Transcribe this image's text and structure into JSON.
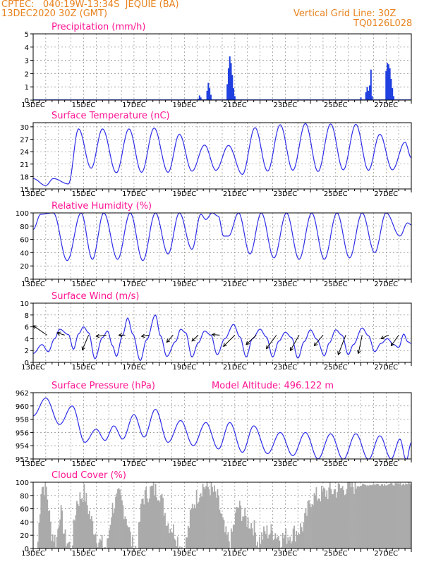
{
  "header": {
    "line1": "CPTEC:   040:19W-13:34S  JEQUIE (BA)",
    "line2": "13DEC2020 30Z (GMT)",
    "right1": "Vertical Grid Line: 30Z",
    "right2": "TQ0126L028"
  },
  "colors": {
    "line": "#2e2ee8",
    "bar": "#1f3fe0",
    "title": "#ff1493",
    "cloud": "#aaaaaa",
    "header": "#e8821e"
  },
  "x_tick_labels": [
    "13DEC",
    "15DEC",
    "17DEC",
    "19DEC",
    "21DEC",
    "23DEC",
    "25DEC",
    "27DEC"
  ],
  "chart_data": [
    {
      "type": "bar",
      "title": "Precipitation (mm/h)",
      "ylim": [
        0,
        5
      ],
      "y_ticks": [
        0,
        1,
        2,
        3,
        4,
        5
      ],
      "x_unit": "day offset from 13DEC 00Z",
      "bars": [
        [
          6.55,
          0.1
        ],
        [
          6.6,
          0.35
        ],
        [
          6.65,
          0.2
        ],
        [
          6.9,
          0.7
        ],
        [
          6.95,
          1.3
        ],
        [
          7.0,
          0.9
        ],
        [
          7.05,
          0.4
        ],
        [
          7.7,
          1.2
        ],
        [
          7.75,
          2.4
        ],
        [
          7.8,
          3.3
        ],
        [
          7.85,
          2.8
        ],
        [
          7.9,
          1.9
        ],
        [
          7.95,
          0.9
        ],
        [
          8.0,
          0.3
        ],
        [
          9.9,
          0.05
        ],
        [
          11.1,
          0.05
        ],
        [
          12.95,
          0.05
        ],
        [
          13.0,
          0.2
        ],
        [
          13.2,
          0.6
        ],
        [
          13.25,
          1.0
        ],
        [
          13.3,
          0.7
        ],
        [
          13.35,
          1.1
        ],
        [
          13.4,
          2.3
        ],
        [
          13.45,
          0.3
        ],
        [
          14.0,
          2.2
        ],
        [
          14.05,
          2.8
        ],
        [
          14.1,
          2.7
        ],
        [
          14.15,
          2.4
        ],
        [
          14.2,
          1.6
        ],
        [
          14.25,
          0.9
        ],
        [
          14.3,
          0.3
        ]
      ]
    },
    {
      "type": "line",
      "title": "Surface Temperature (nC)",
      "ylim": [
        15,
        31
      ],
      "y_ticks": [
        15,
        18,
        21,
        24,
        27,
        30
      ],
      "extrema": [
        [
          0.0,
          17.5
        ],
        [
          0.5,
          15.8
        ],
        [
          0.8,
          17.5
        ],
        [
          1.4,
          16.2
        ],
        [
          1.8,
          29.5
        ],
        [
          2.3,
          20.0
        ],
        [
          2.75,
          29.5
        ],
        [
          3.3,
          18.9
        ],
        [
          3.8,
          29.5
        ],
        [
          4.3,
          19.0
        ],
        [
          4.8,
          29.7
        ],
        [
          5.35,
          19.0
        ],
        [
          5.8,
          28.2
        ],
        [
          6.3,
          19.3
        ],
        [
          6.8,
          25.6
        ],
        [
          7.25,
          19.5
        ],
        [
          7.75,
          25.5
        ],
        [
          8.3,
          18.5
        ],
        [
          8.8,
          29.8
        ],
        [
          9.3,
          19.3
        ],
        [
          9.8,
          30.5
        ],
        [
          10.3,
          19.5
        ],
        [
          10.8,
          30.8
        ],
        [
          11.3,
          19.2
        ],
        [
          11.8,
          30.7
        ],
        [
          12.3,
          19.6
        ],
        [
          12.8,
          30.6
        ],
        [
          13.3,
          19.5
        ],
        [
          13.75,
          28.2
        ],
        [
          14.25,
          19.6
        ],
        [
          14.75,
          26.3
        ],
        [
          15.0,
          22.5
        ]
      ]
    },
    {
      "type": "line",
      "title": "Relative Humidity (%)",
      "ylim": [
        0,
        100
      ],
      "y_ticks": [
        0,
        20,
        40,
        60,
        80,
        100
      ],
      "extrema": [
        [
          0.0,
          75
        ],
        [
          0.3,
          98
        ],
        [
          0.8,
          100
        ],
        [
          1.35,
          28
        ],
        [
          1.9,
          100
        ],
        [
          2.35,
          30
        ],
        [
          2.8,
          100
        ],
        [
          3.35,
          30
        ],
        [
          3.85,
          100
        ],
        [
          4.35,
          28
        ],
        [
          4.85,
          100
        ],
        [
          5.35,
          38
        ],
        [
          5.8,
          100
        ],
        [
          6.3,
          45
        ],
        [
          6.65,
          98
        ],
        [
          6.85,
          90
        ],
        [
          7.1,
          100
        ],
        [
          7.35,
          95
        ],
        [
          7.55,
          65
        ],
        [
          7.75,
          65
        ],
        [
          8.15,
          100
        ],
        [
          8.6,
          38
        ],
        [
          9.05,
          100
        ],
        [
          9.55,
          32
        ],
        [
          10.05,
          100
        ],
        [
          10.55,
          30
        ],
        [
          11.05,
          100
        ],
        [
          11.55,
          30
        ],
        [
          12.05,
          100
        ],
        [
          12.55,
          32
        ],
        [
          13.05,
          100
        ],
        [
          13.55,
          40
        ],
        [
          14.0,
          100
        ],
        [
          14.55,
          65
        ],
        [
          14.85,
          85
        ],
        [
          15.0,
          82
        ]
      ]
    },
    {
      "type": "line",
      "title": "Surface Wind (m/s)",
      "ylim": [
        0,
        10
      ],
      "y_ticks": [
        0,
        2,
        4,
        6,
        8,
        10
      ],
      "extrema": [
        [
          0.0,
          1.5
        ],
        [
          0.35,
          3.0
        ],
        [
          0.6,
          1.8
        ],
        [
          0.85,
          4.0
        ],
        [
          1.05,
          5.6
        ],
        [
          1.4,
          4.7
        ],
        [
          1.6,
          2.2
        ],
        [
          1.8,
          4.8
        ],
        [
          2.0,
          6.0
        ],
        [
          2.2,
          5.0
        ],
        [
          2.45,
          0.6
        ],
        [
          2.75,
          4.2
        ],
        [
          2.95,
          5.3
        ],
        [
          3.15,
          2.8
        ],
        [
          3.3,
          1.0
        ],
        [
          3.55,
          4.6
        ],
        [
          3.75,
          7.5
        ],
        [
          3.95,
          4.8
        ],
        [
          4.25,
          0.3
        ],
        [
          4.5,
          3.8
        ],
        [
          4.85,
          8.0
        ],
        [
          5.05,
          4.5
        ],
        [
          5.3,
          1.0
        ],
        [
          5.65,
          3.5
        ],
        [
          5.85,
          5.6
        ],
        [
          6.05,
          5.0
        ],
        [
          6.3,
          0.9
        ],
        [
          6.55,
          3.3
        ],
        [
          6.8,
          5.3
        ],
        [
          7.05,
          4.6
        ],
        [
          7.3,
          1.3
        ],
        [
          7.6,
          4.0
        ],
        [
          7.95,
          6.4
        ],
        [
          8.2,
          4.3
        ],
        [
          8.45,
          0.9
        ],
        [
          8.7,
          4.0
        ],
        [
          9.0,
          5.6
        ],
        [
          9.25,
          4.3
        ],
        [
          9.5,
          0.9
        ],
        [
          9.75,
          3.6
        ],
        [
          10.0,
          5.1
        ],
        [
          10.25,
          4.2
        ],
        [
          10.5,
          0.7
        ],
        [
          10.75,
          3.5
        ],
        [
          11.0,
          5.5
        ],
        [
          11.25,
          3.9
        ],
        [
          11.55,
          1.1
        ],
        [
          11.75,
          3.3
        ],
        [
          12.0,
          5.5
        ],
        [
          12.25,
          4.6
        ],
        [
          12.5,
          1.3
        ],
        [
          12.7,
          3.0
        ],
        [
          13.05,
          5.8
        ],
        [
          13.3,
          4.5
        ],
        [
          13.55,
          1.8
        ],
        [
          13.8,
          3.2
        ],
        [
          14.05,
          4.0
        ],
        [
          14.3,
          3.0
        ],
        [
          14.5,
          2.5
        ],
        [
          14.7,
          4.8
        ],
        [
          14.85,
          3.5
        ],
        [
          15.0,
          3.2
        ]
      ],
      "arrows": [
        [
          0.0,
          0.55,
          6.2,
          0.2
        ],
        [
          0.95,
          1.25,
          5.0,
          0.3
        ],
        [
          1.95,
          2.2,
          2.1,
          0.28
        ],
        [
          2.5,
          2.9,
          4.4,
          0.1
        ],
        [
          3.4,
          3.65,
          4.6,
          0.2
        ],
        [
          4.3,
          4.6,
          4.4,
          0.1
        ],
        [
          5.3,
          5.55,
          3.4,
          0.15
        ],
        [
          6.3,
          6.55,
          3.6,
          0.15
        ],
        [
          7.1,
          7.4,
          4.7,
          0.35
        ],
        [
          7.55,
          8.0,
          2.7,
          0.6
        ],
        [
          8.45,
          8.85,
          3.0,
          0.5
        ],
        [
          9.25,
          9.65,
          2.3,
          0.55
        ],
        [
          10.2,
          10.55,
          2.0,
          0.55
        ],
        [
          11.15,
          11.5,
          2.8,
          0.5
        ],
        [
          12.1,
          12.4,
          1.3,
          0.5
        ],
        [
          12.9,
          13.05,
          1.5,
          0.3
        ],
        [
          13.8,
          14.1,
          4.0,
          0.1
        ],
        [
          14.2,
          14.5,
          2.8,
          0.1
        ]
      ]
    },
    {
      "type": "line",
      "title": "Surface Pressure (hPa)",
      "annotation": "Model Altitude: 496.122 m",
      "ylim": [
        952,
        962
      ],
      "y_ticks": [
        952,
        954,
        956,
        958,
        960,
        962
      ],
      "extrema": [
        [
          0.0,
          958.5
        ],
        [
          0.5,
          961.2
        ],
        [
          1.05,
          957.2
        ],
        [
          1.55,
          960.0
        ],
        [
          2.05,
          954.5
        ],
        [
          2.5,
          956.5
        ],
        [
          2.85,
          954.8
        ],
        [
          3.2,
          957.0
        ],
        [
          3.55,
          955.0
        ],
        [
          4.0,
          958.7
        ],
        [
          4.4,
          955.3
        ],
        [
          4.85,
          959.5
        ],
        [
          5.35,
          954.5
        ],
        [
          5.85,
          957.8
        ],
        [
          6.35,
          954.0
        ],
        [
          6.85,
          957.5
        ],
        [
          7.35,
          953.5
        ],
        [
          7.8,
          957.5
        ],
        [
          8.3,
          953.0
        ],
        [
          8.75,
          957.0
        ],
        [
          9.3,
          952.8
        ],
        [
          9.8,
          956.0
        ],
        [
          10.3,
          952.5
        ],
        [
          10.8,
          956.0
        ],
        [
          11.3,
          952.0
        ],
        [
          11.8,
          955.8
        ],
        [
          12.3,
          951.9
        ],
        [
          12.8,
          955.8
        ],
        [
          13.3,
          951.9
        ],
        [
          13.75,
          955.5
        ],
        [
          14.2,
          952.0
        ],
        [
          14.55,
          955.0
        ],
        [
          14.8,
          951.7
        ],
        [
          15.0,
          954.5
        ]
      ]
    },
    {
      "type": "area",
      "title": "Cloud Cover (%)",
      "ylim": [
        0,
        100
      ],
      "y_ticks": [
        0,
        20,
        40,
        60,
        80,
        100
      ],
      "breakpoints": [
        [
          0.0,
          0
        ],
        [
          0.15,
          0
        ],
        [
          0.3,
          95
        ],
        [
          0.5,
          90
        ],
        [
          0.7,
          25
        ],
        [
          0.9,
          10
        ],
        [
          1.05,
          60
        ],
        [
          1.25,
          15
        ],
        [
          1.5,
          0
        ],
        [
          1.7,
          70
        ],
        [
          2.0,
          85
        ],
        [
          2.3,
          40
        ],
        [
          2.6,
          10
        ],
        [
          2.9,
          0
        ],
        [
          3.1,
          60
        ],
        [
          3.4,
          80
        ],
        [
          3.7,
          45
        ],
        [
          3.9,
          5
        ],
        [
          4.1,
          0
        ],
        [
          4.3,
          75
        ],
        [
          4.7,
          90
        ],
        [
          5.0,
          85
        ],
        [
          5.3,
          40
        ],
        [
          5.6,
          25
        ],
        [
          5.8,
          5
        ],
        [
          6.0,
          0
        ],
        [
          6.3,
          65
        ],
        [
          6.7,
          95
        ],
        [
          7.05,
          90
        ],
        [
          7.3,
          75
        ],
        [
          7.6,
          20
        ],
        [
          7.8,
          10
        ],
        [
          8.1,
          65
        ],
        [
          8.4,
          45
        ],
        [
          8.7,
          35
        ],
        [
          8.9,
          10
        ],
        [
          9.2,
          25
        ],
        [
          9.55,
          25
        ],
        [
          9.8,
          15
        ],
        [
          10.1,
          20
        ],
        [
          10.4,
          25
        ],
        [
          10.7,
          35
        ],
        [
          11.0,
          75
        ],
        [
          11.3,
          80
        ],
        [
          11.6,
          85
        ],
        [
          12.0,
          88
        ],
        [
          12.4,
          93
        ],
        [
          12.8,
          95
        ],
        [
          13.2,
          96
        ],
        [
          13.6,
          97
        ],
        [
          14.0,
          97
        ],
        [
          14.4,
          97
        ],
        [
          15.0,
          98
        ]
      ]
    }
  ]
}
